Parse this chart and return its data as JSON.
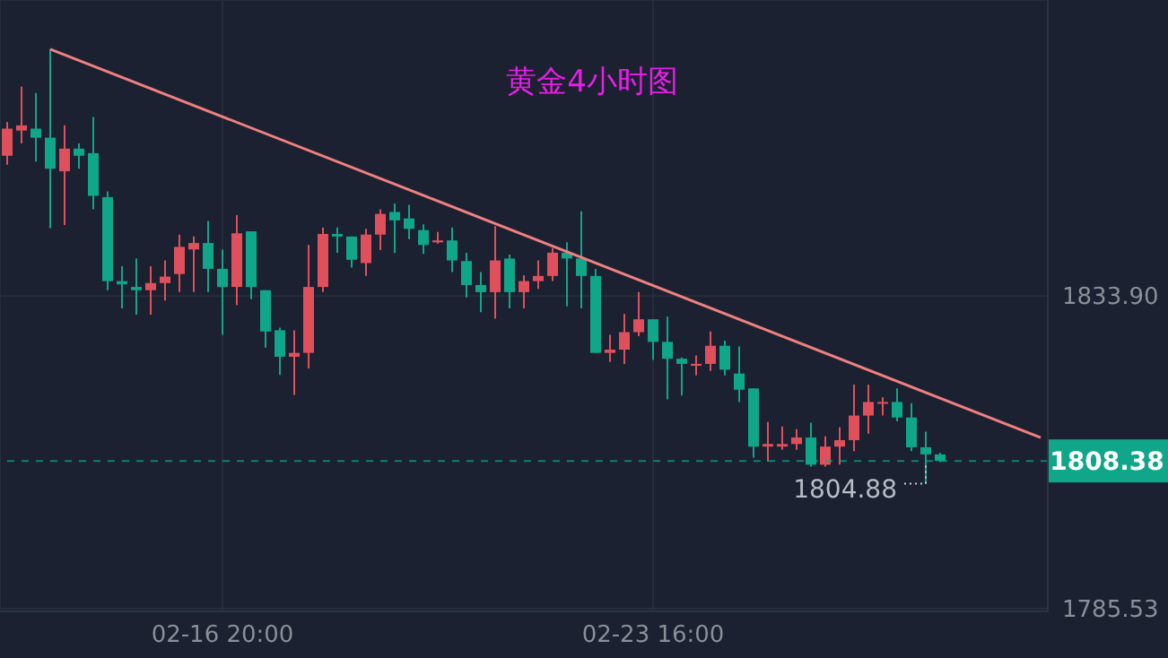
{
  "chart_data": {
    "type": "candlestick",
    "title": "黄金4小时图",
    "categories": [
      null,
      null,
      null,
      null,
      null,
      null,
      null,
      null,
      null,
      null,
      null,
      null,
      null,
      null,
      null,
      "02-16 20:00",
      null,
      null,
      null,
      null,
      null,
      null,
      null,
      null,
      null,
      null,
      null,
      null,
      null,
      null,
      null,
      null,
      null,
      null,
      null,
      null,
      null,
      null,
      null,
      null,
      null,
      null,
      null,
      null,
      null,
      "02-23 16:00",
      null,
      null,
      null,
      null,
      null,
      null,
      null,
      null,
      null,
      null,
      null,
      null,
      null,
      null,
      null,
      null,
      null,
      null,
      null,
      null,
      null,
      null,
      null,
      null,
      null,
      null,
      null
    ],
    "ohlc": [
      [
        1855.6,
        1860.8,
        1854.2,
        1859.8
      ],
      [
        1859.5,
        1866.3,
        1857.5,
        1860.3
      ],
      [
        1859.8,
        1865.3,
        1854.7,
        1858.4
      ],
      [
        1858.4,
        1872.1,
        1844.4,
        1853.6
      ],
      [
        1853.2,
        1860.3,
        1844.9,
        1856.7
      ],
      [
        1856.7,
        1857.5,
        1853.6,
        1855.6
      ],
      [
        1856.0,
        1861.6,
        1847.3,
        1849.4
      ],
      [
        1849.2,
        1850.1,
        1834.8,
        1836.2
      ],
      [
        1836.2,
        1838.5,
        1832.0,
        1835.7
      ],
      [
        1835.3,
        1839.7,
        1831.0,
        1834.8
      ],
      [
        1834.8,
        1838.5,
        1831.0,
        1835.9
      ],
      [
        1835.9,
        1839.4,
        1833.2,
        1836.9
      ],
      [
        1837.3,
        1843.4,
        1834.5,
        1841.5
      ],
      [
        1841.1,
        1843.1,
        1834.5,
        1842.1
      ],
      [
        1842.1,
        1845.5,
        1834.5,
        1838.1
      ],
      [
        1838.1,
        1841.1,
        1827.9,
        1835.3
      ],
      [
        1835.3,
        1846.4,
        1832.5,
        1843.6
      ],
      [
        1843.9,
        1843.9,
        1833.4,
        1835.3
      ],
      [
        1834.8,
        1834.8,
        1825.9,
        1828.4
      ],
      [
        1828.6,
        1829.0,
        1821.7,
        1824.5
      ],
      [
        1824.5,
        1828.6,
        1818.6,
        1825.1
      ],
      [
        1825.1,
        1841.8,
        1822.7,
        1835.3
      ],
      [
        1835.3,
        1844.5,
        1834.5,
        1843.5
      ],
      [
        1843.5,
        1844.5,
        1840.6,
        1843.1
      ],
      [
        1843.1,
        1843.1,
        1838.3,
        1839.5
      ],
      [
        1839.0,
        1844.3,
        1837.0,
        1843.4
      ],
      [
        1843.4,
        1847.3,
        1841.0,
        1846.6
      ],
      [
        1846.9,
        1848.2,
        1840.6,
        1845.6
      ],
      [
        1845.9,
        1848.0,
        1842.7,
        1844.3
      ],
      [
        1844.1,
        1845.0,
        1840.4,
        1841.8
      ],
      [
        1842.2,
        1843.8,
        1842.0,
        1842.5
      ],
      [
        1842.5,
        1844.5,
        1837.6,
        1839.4
      ],
      [
        1839.3,
        1840.6,
        1833.7,
        1835.6
      ],
      [
        1835.6,
        1837.6,
        1831.4,
        1834.5
      ],
      [
        1834.5,
        1844.7,
        1830.4,
        1839.4
      ],
      [
        1839.7,
        1840.3,
        1832.0,
        1834.5
      ],
      [
        1834.5,
        1837.1,
        1832.0,
        1836.2
      ],
      [
        1836.2,
        1839.4,
        1835.0,
        1837.0
      ],
      [
        1837.0,
        1841.3,
        1836.2,
        1840.6
      ],
      [
        1840.6,
        1842.2,
        1832.3,
        1839.7
      ],
      [
        1839.7,
        1847.0,
        1832.0,
        1837.0
      ],
      [
        1837.0,
        1838.1,
        1825.1,
        1825.1
      ],
      [
        1825.1,
        1827.9,
        1823.7,
        1825.6
      ],
      [
        1825.6,
        1831.1,
        1823.4,
        1828.3
      ],
      [
        1828.3,
        1834.5,
        1827.7,
        1830.3
      ],
      [
        1830.3,
        1830.3,
        1824.0,
        1826.8
      ],
      [
        1826.8,
        1830.7,
        1817.9,
        1824.2
      ],
      [
        1824.2,
        1824.4,
        1818.5,
        1823.4
      ],
      [
        1823.1,
        1824.7,
        1821.6,
        1823.4
      ],
      [
        1823.4,
        1828.4,
        1822.3,
        1826.2
      ],
      [
        1826.2,
        1827.0,
        1821.6,
        1822.5
      ],
      [
        1821.9,
        1826.1,
        1817.5,
        1819.4
      ],
      [
        1819.6,
        1819.6,
        1808.9,
        1810.6
      ],
      [
        1810.6,
        1814.4,
        1808.3,
        1811.0
      ],
      [
        1810.6,
        1813.7,
        1810.1,
        1811.0
      ],
      [
        1811.0,
        1813.3,
        1810.1,
        1812.0
      ],
      [
        1812.0,
        1814.3,
        1807.5,
        1807.8
      ],
      [
        1807.8,
        1812.2,
        1807.5,
        1810.6
      ],
      [
        1810.6,
        1813.6,
        1807.8,
        1811.6
      ],
      [
        1811.6,
        1820.2,
        1809.9,
        1815.4
      ],
      [
        1815.4,
        1820.2,
        1812.6,
        1817.5
      ],
      [
        1817.3,
        1818.2,
        1815.4,
        1817.5
      ],
      [
        1817.5,
        1819.6,
        1814.5,
        1815.1
      ],
      [
        1815.1,
        1817.3,
        1809.9,
        1810.5
      ],
      [
        1810.5,
        1812.9,
        1804.88,
        1809.4
      ],
      [
        1809.4,
        1809.6,
        1808.2,
        1808.38
      ],
      null,
      null,
      null,
      null,
      null,
      null,
      null
    ],
    "colors": [
      "#e0505c",
      "#e0505c",
      "#0fa68a",
      "#0fa68a",
      "#e0505c",
      "#0fa68a",
      "#0fa68a",
      "#0fa68a",
      "#0fa68a",
      "#0fa68a",
      "#e0505c",
      "#e0505c",
      "#e0505c",
      "#e0505c",
      "#0fa68a",
      "#0fa68a",
      "#e0505c",
      "#0fa68a",
      "#0fa68a",
      "#0fa68a",
      "#e0505c",
      "#e0505c",
      "#e0505c",
      "#0fa68a",
      "#0fa68a",
      "#e0505c",
      "#e0505c",
      "#0fa68a",
      "#0fa68a",
      "#0fa68a",
      "#e0505c",
      "#0fa68a",
      "#0fa68a",
      "#0fa68a",
      "#e0505c",
      "#0fa68a",
      "#e0505c",
      "#e0505c",
      "#e0505c",
      "#0fa68a",
      "#0fa68a",
      "#0fa68a",
      "#e0505c",
      "#e0505c",
      "#e0505c",
      "#0fa68a",
      "#0fa68a",
      "#0fa68a",
      "#e0505c",
      "#e0505c",
      "#0fa68a",
      "#0fa68a",
      "#0fa68a",
      "#e0505c",
      "#e0505c",
      "#e0505c",
      "#0fa68a",
      "#e0505c",
      "#e0505c",
      "#e0505c",
      "#e0505c",
      "#e0505c",
      "#0fa68a",
      "#0fa68a",
      "#0fa68a",
      "#0fa68a",
      null,
      null,
      null,
      null,
      null,
      null,
      null
    ],
    "series": [
      {
        "type": "line",
        "color": "#f08080",
        "values": [
          null,
          null,
          null,
          1872.1,
          null,
          null,
          null,
          null,
          null,
          null,
          null,
          null,
          null,
          null,
          null,
          null,
          null,
          null,
          null,
          null,
          null,
          null,
          null,
          null,
          null,
          null,
          null,
          null,
          null,
          null,
          null,
          null,
          null,
          null,
          null,
          null,
          null,
          null,
          null,
          null,
          null,
          null,
          null,
          null,
          null,
          null,
          null,
          null,
          null,
          null,
          null,
          null,
          null,
          null,
          null,
          null,
          null,
          null,
          null,
          null,
          null,
          null,
          null,
          null,
          null,
          null,
          null,
          null,
          null,
          null,
          null,
          null,
          1812.0
        ]
      }
    ],
    "ylim": [
      1785.1,
      1879.7
    ],
    "yticks": [
      1785.53,
      {
        "value": 1833.9,
        "label": "1833.90"
      }
    ],
    "ref_lines": [
      {
        "axis": "y",
        "value": 1808.38,
        "label": "1808.38",
        "color": "#0fa68a",
        "line_style": "dashed"
      }
    ],
    "annotations": [
      "1804.88"
    ],
    "grid": true
  }
}
